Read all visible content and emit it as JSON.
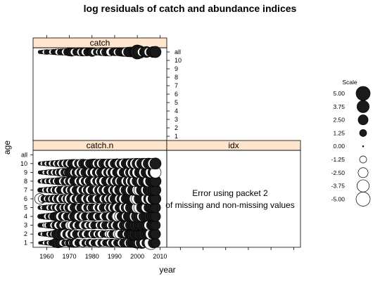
{
  "chart_data": {
    "type": "scatter",
    "title": "log residuals of catch and abundance indices",
    "xlabel": "year",
    "ylabel": "age",
    "x_ticks": [
      1960,
      1970,
      1980,
      1990,
      2000,
      2010
    ],
    "xlim": [
      1954,
      2013
    ],
    "age_levels": [
      "1",
      "2",
      "3",
      "4",
      "5",
      "6",
      "7",
      "8",
      "9",
      "10",
      "all"
    ],
    "panels": [
      {
        "name": "catch",
        "ages": [
          "all"
        ],
        "years": [
          1957,
          1958,
          1959,
          1960,
          1961,
          1962,
          1963,
          1964,
          1965,
          1966,
          1967,
          1968,
          1969,
          1970,
          1971,
          1972,
          1973,
          1974,
          1975,
          1976,
          1977,
          1978,
          1979,
          1980,
          1981,
          1982,
          1983,
          1984,
          1985,
          1986,
          1987,
          1988,
          1989,
          1990,
          1991,
          1992,
          1993,
          1994,
          1995,
          1996,
          1997,
          1998,
          1999,
          2000,
          2001,
          2002,
          2003,
          2004,
          2005,
          2006,
          2007,
          2008
        ],
        "residuals": {
          "all": [
            0.3,
            0.4,
            -0.5,
            0.6,
            0.5,
            -0.6,
            0.7,
            0.8,
            -0.9,
            0.9,
            1.0,
            -1.1,
            1.2,
            1.6,
            1.8,
            -1.3,
            1.2,
            1.4,
            -1.5,
            1.7,
            -1.6,
            1.5,
            1.3,
            2.0,
            -1.2,
            1.1,
            -1.0,
            1.3,
            -1.4,
            1.6,
            1.5,
            -1.7,
            1.2,
            1.4,
            -1.3,
            1.5,
            1.8,
            2.0,
            -2.0,
            2.3,
            2.5,
            2.2,
            3.0,
            5.0,
            4.0,
            -2.0,
            2.2,
            3.0,
            -2.0,
            2.2,
            3.0,
            3.2
          ]
        }
      },
      {
        "name": "catch.n",
        "ages": [
          "1",
          "2",
          "3",
          "4",
          "5",
          "6",
          "7",
          "8",
          "9",
          "10"
        ],
        "years": [
          1957,
          1958,
          1959,
          1960,
          1961,
          1962,
          1963,
          1964,
          1965,
          1966,
          1967,
          1968,
          1969,
          1970,
          1971,
          1972,
          1973,
          1974,
          1975,
          1976,
          1977,
          1978,
          1979,
          1980,
          1981,
          1982,
          1983,
          1984,
          1985,
          1986,
          1987,
          1988,
          1989,
          1990,
          1991,
          1992,
          1993,
          1994,
          1995,
          1996,
          1997,
          1998,
          1999,
          2000,
          2001,
          2002,
          2003,
          2004,
          2005,
          2006,
          2007,
          2008
        ],
        "residuals": {
          "1": [
            0.2,
            0.3,
            -0.4,
            0.5,
            -0.6,
            0.8,
            1.2,
            2.2,
            2.5,
            1.8,
            -1.2,
            1.0,
            -0.9,
            1.5,
            -1.3,
            2.2,
            -1.6,
            1.3,
            1.1,
            -1.6,
            1.2,
            -1.0,
            1.4,
            -1.2,
            1.1,
            1.3,
            -1.5,
            1.2,
            -1.1,
            1.0,
            1.3,
            -1.4,
            1.5,
            -1.3,
            1.2,
            1.4,
            -1.6,
            1.8,
            2.0,
            -1.8,
            2.2,
            2.0,
            2.5,
            3.0,
            -2.5,
            3.2,
            -2.2,
            2.0,
            -2.5,
            -4.5,
            2.5,
            2.2
          ],
          "2": [
            0.3,
            -0.4,
            0.5,
            0.6,
            -0.8,
            1.0,
            -1.2,
            1.8,
            3.0,
            3.5,
            2.5,
            -2.2,
            2.0,
            -1.8,
            1.5,
            -1.6,
            1.4,
            1.2,
            -1.3,
            1.5,
            -1.4,
            1.2,
            1.3,
            -1.5,
            1.6,
            -1.2,
            1.3,
            -1.4,
            1.1,
            1.2,
            -1.3,
            -1.5,
            1.4,
            1.6,
            -2.0,
            -2.2,
            1.5,
            1.6,
            -1.4,
            1.8,
            2.2,
            3.5,
            4.0,
            3.0,
            3.5,
            2.8,
            3.0,
            2.2,
            2.5,
            -3.0,
            2.5,
            2.6
          ],
          "3": [
            0.4,
            0.5,
            -0.6,
            -0.8,
            0.9,
            1.1,
            -1.3,
            1.5,
            -1.6,
            1.4,
            -1.2,
            1.3,
            1.5,
            -1.8,
            -2.0,
            1.6,
            -1.5,
            1.4,
            1.6,
            -1.7,
            1.5,
            -1.3,
            1.2,
            -1.4,
            1.3,
            1.1,
            -1.2,
            1.4,
            -1.5,
            1.6,
            1.2,
            -1.3,
            1.5,
            -1.6,
            1.7,
            1.9,
            -1.8,
            2.0,
            2.2,
            -2.0,
            2.6,
            2.8,
            3.5,
            3.0,
            2.5,
            2.8,
            2.2,
            2.5,
            -2.2,
            2.0,
            2.2,
            2.4
          ],
          "4": [
            0.5,
            0.6,
            0.8,
            -0.9,
            1.0,
            -1.1,
            1.5,
            2.0,
            2.5,
            -2.0,
            1.8,
            -1.6,
            1.4,
            1.6,
            -1.5,
            2.0,
            2.2,
            -1.8,
            1.5,
            -1.6,
            1.5,
            1.3,
            -1.5,
            1.6,
            1.8,
            -1.5,
            1.4,
            1.3,
            -1.6,
            1.5,
            1.7,
            -1.9,
            1.8,
            2.2,
            -2.5,
            -2.2,
            2.0,
            1.8,
            -2.0,
            2.5,
            3.0,
            3.2,
            -3.0,
            3.5,
            2.8,
            -2.5,
            2.8,
            2.2,
            2.5,
            2.0,
            2.4,
            2.6
          ],
          "5": [
            0.4,
            -0.5,
            0.6,
            0.7,
            -0.8,
            0.9,
            -1.0,
            1.3,
            -1.5,
            1.4,
            -1.2,
            1.5,
            -1.7,
            2.0,
            -1.8,
            1.6,
            1.5,
            -1.4,
            1.6,
            1.8,
            -1.7,
            1.5,
            -1.3,
            1.6,
            1.4,
            -1.6,
            1.5,
            -1.8,
            1.7,
            1.5,
            -1.6,
            1.8,
            -2.0,
            2.2,
            -2.0,
            1.8,
            2.0,
            -2.2,
            2.4,
            -2.5,
            2.6,
            2.8,
            3.0,
            -3.2,
            -3.5,
            2.8,
            2.5,
            -2.6,
            2.2,
            2.5,
            2.4,
            2.6
          ],
          "6": [
            -2.8,
            -1.5,
            1.2,
            -1.0,
            1.3,
            -1.2,
            1.5,
            -1.6,
            1.8,
            -1.7,
            1.6,
            -1.5,
            1.7,
            -2.5,
            2.5,
            -2.0,
            1.8,
            -1.6,
            1.8,
            1.6,
            -1.8,
            1.7,
            -1.6,
            1.5,
            1.7,
            -1.8,
            1.6,
            1.5,
            -1.7,
            1.8,
            -1.6,
            1.7,
            -2.0,
            2.2,
            1.9,
            -2.0,
            2.2,
            -2.4,
            2.3,
            2.6,
            2.8,
            3.0,
            -3.2,
            -3.5,
            3.0,
            2.8,
            3.2,
            -2.8,
            2.6,
            -3.0,
            2.8,
            3.0
          ],
          "7": [
            0.5,
            0.6,
            -0.7,
            0.8,
            -0.9,
            1.0,
            -1.2,
            1.3,
            -1.5,
            1.4,
            1.6,
            -1.7,
            1.5,
            -1.6,
            1.8,
            -1.9,
            1.7,
            1.6,
            -1.8,
            1.7,
            -1.6,
            1.8,
            -1.9,
            1.7,
            1.6,
            -1.7,
            1.8,
            -1.9,
            2.0,
            -1.8,
            1.7,
            1.9,
            -2.0,
            2.2,
            -2.3,
            2.1,
            2.4,
            -2.2,
            2.5,
            2.7,
            -2.6,
            2.8,
            3.0,
            -2.8,
            -3.2,
            3.0,
            2.8,
            -3.0,
            3.2,
            3.5,
            2.8,
            3.0
          ],
          "8": [
            0.4,
            -0.5,
            0.6,
            -0.7,
            0.8,
            -0.9,
            1.0,
            -1.1,
            1.3,
            1.4,
            -1.5,
            1.6,
            -1.4,
            1.6,
            -1.7,
            1.8,
            1.6,
            -1.7,
            1.8,
            -1.9,
            1.7,
            -1.8,
            1.9,
            1.8,
            -1.7,
            1.6,
            -1.8,
            1.9,
            -2.0,
            1.8,
            1.7,
            -1.9,
            2.0,
            -2.1,
            2.2,
            -2.0,
            2.3,
            2.1,
            -2.4,
            2.5,
            -2.6,
            2.8,
            -3.0,
            2.8,
            3.0,
            -2.8,
            3.2,
            3.0,
            -3.2,
            3.0,
            2.8,
            3.2
          ],
          "9": [
            0.3,
            0.4,
            -0.5,
            0.6,
            -0.7,
            0.8,
            -0.9,
            1.0,
            -1.2,
            1.5,
            -1.8,
            1.6,
            -1.5,
            2.5,
            2.5,
            -1.6,
            1.8,
            -1.7,
            1.6,
            -1.8,
            1.9,
            1.7,
            -1.8,
            1.9,
            -2.0,
            1.8,
            -1.7,
            1.9,
            2.0,
            -1.9,
            1.8,
            -2.0,
            2.1,
            -2.2,
            2.0,
            2.2,
            -2.3,
            2.1,
            2.4,
            -2.2,
            2.5,
            -2.6,
            2.7,
            -2.8,
            2.6,
            3.0,
            -2.8,
            2.9,
            3.0,
            -3.0,
            2.8,
            -3.2
          ],
          "10": [
            0.3,
            -0.4,
            0.5,
            -0.6,
            0.7,
            -0.8,
            0.9,
            -1.0,
            1.1,
            -1.2,
            1.3,
            -1.4,
            1.5,
            -1.6,
            1.7,
            1.8,
            -1.7,
            1.6,
            -1.8,
            1.9,
            1.7,
            -1.6,
            1.8,
            2.0,
            2.2,
            -1.8,
            1.9,
            -2.0,
            2.1,
            1.9,
            -2.0,
            2.1,
            -2.2,
            2.0,
            2.3,
            -2.1,
            2.2,
            -2.4,
            2.3,
            2.5,
            -2.4,
            2.6,
            -2.7,
            2.8,
            -2.6,
            2.7,
            2.9,
            -2.8,
            3.0,
            2.8,
            -2.9,
            3.2
          ]
        }
      },
      {
        "name": "idx",
        "ages": [],
        "error_lines": [
          "Error using packet 2",
          "of missing and non-missing values"
        ]
      }
    ],
    "legend": {
      "title": "Scale",
      "position": "right",
      "values": [
        5.0,
        3.75,
        2.5,
        1.25,
        0.0,
        -1.25,
        -2.5,
        -3.75,
        -5.0
      ],
      "labels": [
        "5.00",
        "3.75",
        "2.50",
        "1.25",
        "0.00",
        "-1.25",
        "-2.50",
        "-3.75",
        "-5.00"
      ]
    },
    "colors": {
      "positive_fill": "#1a1a1a",
      "negative_fill": "#ffffff",
      "strip": "#ffe5cc",
      "frame": "#000000"
    }
  }
}
